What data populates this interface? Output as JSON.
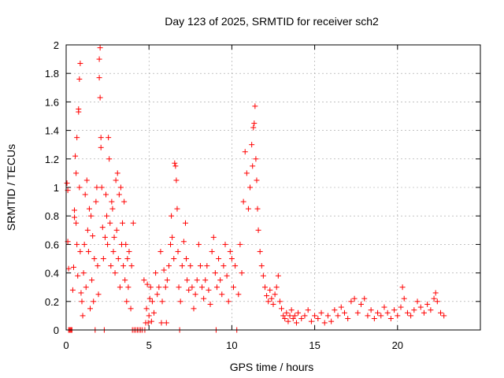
{
  "chart_data": {
    "type": "scatter",
    "title": "Day 123 of 2025, SRMTID for receiver sch2",
    "xlabel": "GPS time / hours",
    "ylabel": "SRMTID / TECUs",
    "xlim": [
      0,
      25
    ],
    "ylim": [
      0,
      2
    ],
    "xticks": [
      0,
      5,
      10,
      15,
      20
    ],
    "xtick_labels": [
      "0",
      "5",
      "10",
      "15",
      "20"
    ],
    "yticks": [
      0,
      0.2,
      0.4,
      0.6,
      0.8,
      1,
      1.2,
      1.4,
      1.6,
      1.8,
      2
    ],
    "ytick_labels": [
      "0",
      "0.2",
      "0.4",
      "0.6",
      "0.8",
      "1",
      "1.2",
      "1.4",
      "1.6",
      "1.8",
      "2"
    ],
    "grid": true,
    "marker": "plus",
    "series": [
      {
        "name": "SRMTID",
        "color": "#ff0000",
        "points": [
          [
            0.05,
            1.03
          ],
          [
            0.1,
            0.98
          ],
          [
            0.1,
            0.62
          ],
          [
            0.15,
            0.43
          ],
          [
            0.15,
            0.0
          ],
          [
            0.2,
            0.0
          ],
          [
            0.25,
            0.0
          ],
          [
            0.3,
            0.0
          ],
          [
            0.35,
            0.0
          ],
          [
            0.4,
            0.28
          ],
          [
            0.45,
            0.44
          ],
          [
            0.5,
            0.84
          ],
          [
            0.5,
            0.79
          ],
          [
            0.55,
            1.22
          ],
          [
            0.6,
            1.1
          ],
          [
            0.6,
            0.75
          ],
          [
            0.65,
            0.6
          ],
          [
            0.65,
            1.35
          ],
          [
            0.7,
            0.38
          ],
          [
            0.75,
            1.53
          ],
          [
            0.75,
            1.55
          ],
          [
            0.8,
            1.76
          ],
          [
            0.85,
            1.87
          ],
          [
            0.8,
            1.0
          ],
          [
            0.85,
            0.55
          ],
          [
            0.9,
            0.26
          ],
          [
            0.95,
            0.2
          ],
          [
            1.0,
            0.1
          ],
          [
            1.05,
            0.4
          ],
          [
            1.1,
            0.6
          ],
          [
            1.15,
            0.95
          ],
          [
            1.2,
            0.3
          ],
          [
            1.25,
            1.05
          ],
          [
            1.3,
            0.7
          ],
          [
            1.35,
            0.55
          ],
          [
            1.4,
            0.85
          ],
          [
            1.45,
            0.15
          ],
          [
            1.5,
            0.8
          ],
          [
            1.55,
            0.35
          ],
          [
            1.6,
            0.66
          ],
          [
            1.65,
            0.2
          ],
          [
            1.7,
            0.5
          ],
          [
            1.75,
            0.0
          ],
          [
            1.8,
            0.9
          ],
          [
            1.85,
            1.0
          ],
          [
            1.9,
            0.45
          ],
          [
            1.95,
            0.25
          ],
          [
            2.0,
            1.77
          ],
          [
            2.0,
            1.9
          ],
          [
            2.05,
            1.98
          ],
          [
            2.05,
            1.63
          ],
          [
            2.1,
            1.35
          ],
          [
            2.1,
            1.28
          ],
          [
            2.15,
            1.0
          ],
          [
            2.2,
            0.72
          ],
          [
            2.25,
            0.5
          ],
          [
            2.3,
            0.0
          ],
          [
            2.35,
            0.65
          ],
          [
            2.4,
            0.95
          ],
          [
            2.45,
            0.8
          ],
          [
            2.5,
            0.6
          ],
          [
            2.55,
            1.35
          ],
          [
            2.6,
            1.2
          ],
          [
            2.65,
            0.75
          ],
          [
            2.7,
            0.45
          ],
          [
            2.75,
            0.9
          ],
          [
            2.8,
            0.85
          ],
          [
            2.85,
            0.55
          ],
          [
            2.9,
            0.65
          ],
          [
            2.95,
            0.4
          ],
          [
            3.0,
            1.05
          ],
          [
            3.05,
            0.7
          ],
          [
            3.1,
            1.1
          ],
          [
            3.15,
            0.5
          ],
          [
            3.2,
            0.95
          ],
          [
            3.25,
            0.3
          ],
          [
            3.3,
            1.0
          ],
          [
            3.35,
            0.6
          ],
          [
            3.4,
            0.75
          ],
          [
            3.45,
            0.45
          ],
          [
            3.5,
            0.9
          ],
          [
            3.55,
            0.35
          ],
          [
            3.6,
            0.6
          ],
          [
            3.65,
            0.2
          ],
          [
            3.7,
            0.5
          ],
          [
            3.75,
            0.3
          ],
          [
            3.8,
            0.55
          ],
          [
            3.9,
            0.15
          ],
          [
            3.95,
            0.45
          ],
          [
            4.0,
            0.0
          ],
          [
            4.05,
            0.75
          ],
          [
            4.1,
            0.0
          ],
          [
            4.2,
            0.0
          ],
          [
            4.3,
            0.0
          ],
          [
            4.4,
            0.0
          ],
          [
            4.5,
            0.0
          ],
          [
            4.6,
            0.0
          ],
          [
            4.7,
            0.35
          ],
          [
            4.75,
            0.0
          ],
          [
            4.8,
            0.05
          ],
          [
            4.85,
            0.15
          ],
          [
            4.9,
            0.32
          ],
          [
            4.95,
            0.05
          ],
          [
            5.0,
            0.1
          ],
          [
            5.05,
            0.22
          ],
          [
            5.1,
            0.3
          ],
          [
            5.15,
            0.06
          ],
          [
            5.2,
            0.2
          ],
          [
            5.3,
            0.12
          ],
          [
            5.4,
            0.4
          ],
          [
            5.5,
            0.25
          ],
          [
            5.6,
            0.3
          ],
          [
            5.7,
            0.55
          ],
          [
            5.75,
            0.05
          ],
          [
            5.8,
            0.2
          ],
          [
            5.9,
            0.42
          ],
          [
            6.0,
            0.3
          ],
          [
            6.05,
            0.05
          ],
          [
            6.1,
            0.35
          ],
          [
            6.2,
            0.45
          ],
          [
            6.3,
            0.6
          ],
          [
            6.35,
            0.8
          ],
          [
            6.4,
            0.65
          ],
          [
            6.5,
            0.5
          ],
          [
            6.55,
            1.17
          ],
          [
            6.6,
            1.15
          ],
          [
            6.65,
            1.05
          ],
          [
            6.7,
            0.85
          ],
          [
            6.75,
            0.55
          ],
          [
            6.8,
            0.3
          ],
          [
            6.85,
            0.0
          ],
          [
            6.9,
            0.2
          ],
          [
            7.0,
            0.45
          ],
          [
            7.1,
            0.62
          ],
          [
            7.2,
            0.75
          ],
          [
            7.25,
            0.5
          ],
          [
            7.3,
            0.35
          ],
          [
            7.4,
            0.28
          ],
          [
            7.5,
            0.45
          ],
          [
            7.6,
            0.3
          ],
          [
            7.7,
            0.15
          ],
          [
            7.8,
            0.25
          ],
          [
            7.9,
            0.35
          ],
          [
            8.0,
            0.6
          ],
          [
            8.1,
            0.45
          ],
          [
            8.2,
            0.3
          ],
          [
            8.3,
            0.22
          ],
          [
            8.4,
            0.35
          ],
          [
            8.5,
            0.45
          ],
          [
            8.6,
            0.28
          ],
          [
            8.7,
            0.18
          ],
          [
            8.8,
            0.55
          ],
          [
            8.9,
            0.65
          ],
          [
            9.0,
            0.4
          ],
          [
            9.05,
            0.0
          ],
          [
            9.1,
            0.3
          ],
          [
            9.2,
            0.5
          ],
          [
            9.3,
            0.35
          ],
          [
            9.4,
            0.25
          ],
          [
            9.5,
            0.45
          ],
          [
            9.6,
            0.6
          ],
          [
            9.7,
            0.38
          ],
          [
            9.8,
            0.2
          ],
          [
            9.9,
            0.55
          ],
          [
            10.0,
            0.5
          ],
          [
            10.1,
            0.3
          ],
          [
            10.2,
            0.45
          ],
          [
            10.3,
            0.0
          ],
          [
            10.4,
            0.25
          ],
          [
            10.5,
            0.6
          ],
          [
            10.6,
            0.4
          ],
          [
            10.7,
            0.9
          ],
          [
            10.8,
            1.25
          ],
          [
            10.9,
            1.1
          ],
          [
            11.0,
            0.85
          ],
          [
            11.1,
            1.0
          ],
          [
            11.2,
            1.3
          ],
          [
            11.25,
            1.15
          ],
          [
            11.3,
            1.42
          ],
          [
            11.35,
            1.45
          ],
          [
            11.4,
            1.57
          ],
          [
            11.45,
            1.2
          ],
          [
            11.5,
            1.05
          ],
          [
            11.55,
            0.85
          ],
          [
            11.6,
            0.7
          ],
          [
            11.7,
            0.55
          ],
          [
            11.8,
            0.45
          ],
          [
            11.9,
            0.38
          ],
          [
            12.0,
            0.3
          ],
          [
            12.1,
            0.24
          ],
          [
            12.2,
            0.2
          ],
          [
            12.3,
            0.28
          ],
          [
            12.4,
            0.22
          ],
          [
            12.5,
            0.18
          ],
          [
            12.6,
            0.25
          ],
          [
            12.7,
            0.3
          ],
          [
            12.8,
            0.38
          ],
          [
            12.9,
            0.2
          ],
          [
            13.0,
            0.15
          ],
          [
            13.1,
            0.1
          ],
          [
            13.2,
            0.08
          ],
          [
            13.3,
            0.12
          ],
          [
            13.4,
            0.06
          ],
          [
            13.5,
            0.1
          ],
          [
            13.6,
            0.14
          ],
          [
            13.7,
            0.08
          ],
          [
            13.8,
            0.1
          ],
          [
            13.9,
            0.05
          ],
          [
            14.0,
            0.12
          ],
          [
            14.2,
            0.08
          ],
          [
            14.4,
            0.1
          ],
          [
            14.6,
            0.14
          ],
          [
            14.8,
            0.06
          ],
          [
            15.0,
            0.1
          ],
          [
            15.2,
            0.08
          ],
          [
            15.4,
            0.12
          ],
          [
            15.6,
            0.05
          ],
          [
            15.8,
            0.1
          ],
          [
            16.0,
            0.06
          ],
          [
            16.2,
            0.14
          ],
          [
            16.4,
            0.1
          ],
          [
            16.6,
            0.16
          ],
          [
            16.8,
            0.12
          ],
          [
            17.0,
            0.08
          ],
          [
            17.2,
            0.2
          ],
          [
            17.4,
            0.22
          ],
          [
            17.6,
            0.12
          ],
          [
            17.8,
            0.18
          ],
          [
            18.0,
            0.22
          ],
          [
            18.2,
            0.1
          ],
          [
            18.4,
            0.14
          ],
          [
            18.6,
            0.08
          ],
          [
            18.8,
            0.12
          ],
          [
            19.0,
            0.1
          ],
          [
            19.2,
            0.16
          ],
          [
            19.4,
            0.12
          ],
          [
            19.6,
            0.08
          ],
          [
            19.8,
            0.14
          ],
          [
            20.0,
            0.1
          ],
          [
            20.2,
            0.16
          ],
          [
            20.3,
            0.3
          ],
          [
            20.4,
            0.22
          ],
          [
            20.6,
            0.12
          ],
          [
            20.8,
            0.1
          ],
          [
            21.0,
            0.14
          ],
          [
            21.2,
            0.2
          ],
          [
            21.4,
            0.16
          ],
          [
            21.6,
            0.12
          ],
          [
            21.8,
            0.18
          ],
          [
            22.0,
            0.14
          ],
          [
            22.2,
            0.22
          ],
          [
            22.3,
            0.26
          ],
          [
            22.4,
            0.2
          ],
          [
            22.6,
            0.12
          ],
          [
            22.8,
            0.1
          ]
        ]
      }
    ]
  }
}
